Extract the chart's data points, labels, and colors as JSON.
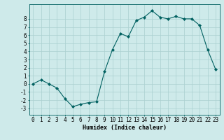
{
  "x": [
    0,
    1,
    2,
    3,
    4,
    5,
    6,
    7,
    8,
    9,
    10,
    11,
    12,
    13,
    14,
    15,
    16,
    17,
    18,
    19,
    20,
    21,
    22,
    23
  ],
  "y": [
    0,
    0.5,
    0,
    -0.5,
    -1.8,
    -2.8,
    -2.5,
    -2.3,
    -2.2,
    1.5,
    4.2,
    6.2,
    5.8,
    7.8,
    8.2,
    9.0,
    8.2,
    8.0,
    8.3,
    8.0,
    8.0,
    7.2,
    4.2,
    1.8
  ],
  "line_color": "#006060",
  "marker": "D",
  "markersize": 2,
  "linewidth": 0.8,
  "xlabel": "Humidex (Indice chaleur)",
  "xlabel_fontsize": 6,
  "xlim": [
    -0.5,
    23.5
  ],
  "ylim": [
    -3.8,
    9.8
  ],
  "yticks": [
    -3,
    -2,
    -1,
    0,
    1,
    2,
    3,
    4,
    5,
    6,
    7,
    8
  ],
  "xticks": [
    0,
    1,
    2,
    3,
    4,
    5,
    6,
    7,
    8,
    9,
    10,
    11,
    12,
    13,
    14,
    15,
    16,
    17,
    18,
    19,
    20,
    21,
    22,
    23
  ],
  "background_color": "#ceeaea",
  "grid_color": "#aad0d0",
  "tick_fontsize": 5.5,
  "spine_color": "#006060"
}
